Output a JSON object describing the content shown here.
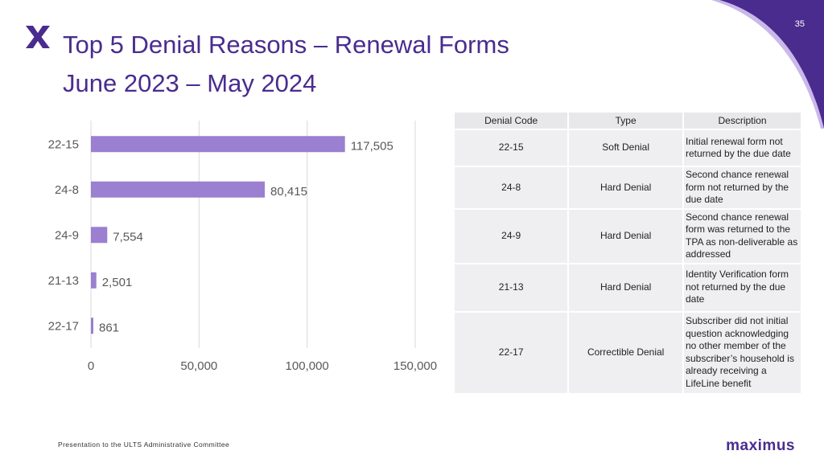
{
  "page_number": "35",
  "title": {
    "line1": "Top 5 Denial Reasons – Renewal Forms",
    "line2": "June 2023 – May 2024"
  },
  "colors": {
    "accent": "#4a2c8f",
    "bar": "#9b7fd0"
  },
  "chart_data": {
    "type": "bar",
    "orientation": "horizontal",
    "categories": [
      "22-15",
      "24-8",
      "24-9",
      "21-13",
      "22-17"
    ],
    "values": [
      117505,
      80415,
      7554,
      2501,
      861
    ],
    "value_labels": [
      "117,505",
      "80,415",
      "7,554",
      "2,501",
      "861"
    ],
    "xlim": [
      0,
      150000
    ],
    "x_ticks": [
      0,
      50000,
      100000,
      150000
    ],
    "x_tick_labels": [
      "0",
      "50,000",
      "100,000",
      "150,000"
    ],
    "grid": true
  },
  "table": {
    "headers": [
      "Denial Code",
      "Type",
      "Description"
    ],
    "rows": [
      {
        "code": "22-15",
        "type": "Soft Denial",
        "description": "Initial renewal form not returned by the due date"
      },
      {
        "code": "24-8",
        "type": "Hard Denial",
        "description": "Second chance renewal form not returned by the due date"
      },
      {
        "code": "24-9",
        "type": "Hard Denial",
        "description": "Second chance renewal form was returned to the TPA as non-deliverable as addressed"
      },
      {
        "code": "21-13",
        "type": "Hard Denial",
        "description": "Identity Verification form not returned by the due date"
      },
      {
        "code": "22-17",
        "type": "Correctible Denial",
        "description": "Subscriber did not initial question acknowledging no other member of the subscriber’s household is already receiving a LifeLine benefit"
      }
    ]
  },
  "footer": {
    "text": "Presentation to the ULTS Administrative Committee",
    "brand": "maximus"
  }
}
